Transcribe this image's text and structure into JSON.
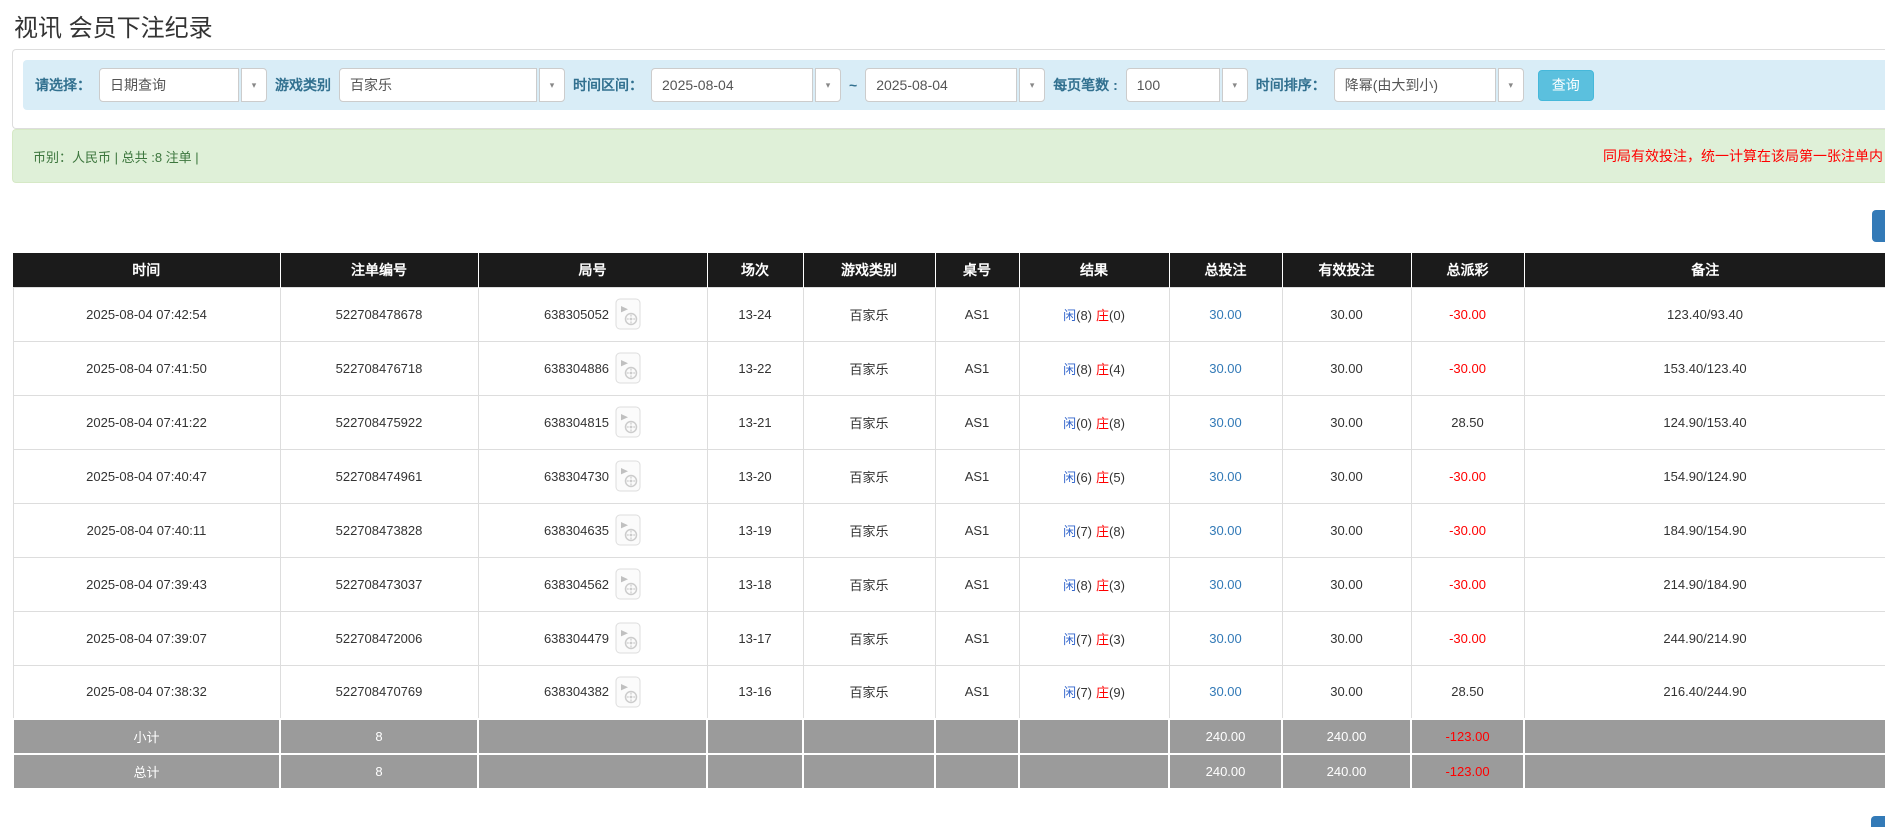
{
  "page": {
    "title": "视讯 会员下注纪录"
  },
  "colors": {
    "accent_blue": "#337ab7",
    "search_button_bg": "#5bc0de",
    "negative_red": "#ff0000",
    "player_blue": "#3366cc",
    "header_bg": "#1b1b1b",
    "summary_row_bg": "#9b9b9b",
    "filter_bar_bg": "#d9edf7",
    "info_bar_bg": "#dff0d8",
    "filter_label_color": "#31708f"
  },
  "icons": {
    "chevron_down": "▾",
    "video": "film-file-icon"
  },
  "filters": {
    "select_type_label": "请选择：",
    "select_type_value": "日期查询",
    "game_type_label": "游戏类别",
    "game_type_value": "百家乐",
    "time_range_label": "时间区间：",
    "date_from": "2025-08-04",
    "tilde": "~",
    "date_to": "2025-08-04",
    "page_size_label": "每页笔数 :",
    "page_size_value": "100",
    "sort_label": "时间排序：",
    "sort_value": "降幂(由大到小)",
    "search_button": "查询"
  },
  "summary_bar": {
    "left_text": "币别：人民币 | 总共 :8 注单 |",
    "right_text": "同局有效投注，统一计算在该局第一张注单内"
  },
  "table": {
    "headers": [
      "时间",
      "注单编号",
      "局号",
      "场次",
      "游戏类别",
      "桌号",
      "结果",
      "总投注",
      "有效投注",
      "总派彩",
      "备注"
    ],
    "rows": [
      {
        "time": "2025-08-04 07:42:54",
        "bet_id": "522708478678",
        "round_id": "638305052",
        "session": "13-24",
        "game": "百家乐",
        "table_no": "AS1",
        "player_label": "闲",
        "player_pts": "(8)",
        "banker_label": "庄",
        "banker_pts": "(0)",
        "total_bet": "30.00",
        "valid_bet": "30.00",
        "payout": "-30.00",
        "remark": "123.40/93.40"
      },
      {
        "time": "2025-08-04 07:41:50",
        "bet_id": "522708476718",
        "round_id": "638304886",
        "session": "13-22",
        "game": "百家乐",
        "table_no": "AS1",
        "player_label": "闲",
        "player_pts": "(8)",
        "banker_label": "庄",
        "banker_pts": "(4)",
        "total_bet": "30.00",
        "valid_bet": "30.00",
        "payout": "-30.00",
        "remark": "153.40/123.40"
      },
      {
        "time": "2025-08-04 07:41:22",
        "bet_id": "522708475922",
        "round_id": "638304815",
        "session": "13-21",
        "game": "百家乐",
        "table_no": "AS1",
        "player_label": "闲",
        "player_pts": "(0)",
        "banker_label": "庄",
        "banker_pts": "(8)",
        "total_bet": "30.00",
        "valid_bet": "30.00",
        "payout": "28.50",
        "remark": "124.90/153.40"
      },
      {
        "time": "2025-08-04 07:40:47",
        "bet_id": "522708474961",
        "round_id": "638304730",
        "session": "13-20",
        "game": "百家乐",
        "table_no": "AS1",
        "player_label": "闲",
        "player_pts": "(6)",
        "banker_label": "庄",
        "banker_pts": "(5)",
        "total_bet": "30.00",
        "valid_bet": "30.00",
        "payout": "-30.00",
        "remark": "154.90/124.90"
      },
      {
        "time": "2025-08-04 07:40:11",
        "bet_id": "522708473828",
        "round_id": "638304635",
        "session": "13-19",
        "game": "百家乐",
        "table_no": "AS1",
        "player_label": "闲",
        "player_pts": "(7)",
        "banker_label": "庄",
        "banker_pts": "(8)",
        "total_bet": "30.00",
        "valid_bet": "30.00",
        "payout": "-30.00",
        "remark": "184.90/154.90"
      },
      {
        "time": "2025-08-04 07:39:43",
        "bet_id": "522708473037",
        "round_id": "638304562",
        "session": "13-18",
        "game": "百家乐",
        "table_no": "AS1",
        "player_label": "闲",
        "player_pts": "(8)",
        "banker_label": "庄",
        "banker_pts": "(3)",
        "total_bet": "30.00",
        "valid_bet": "30.00",
        "payout": "-30.00",
        "remark": "214.90/184.90"
      },
      {
        "time": "2025-08-04 07:39:07",
        "bet_id": "522708472006",
        "round_id": "638304479",
        "session": "13-17",
        "game": "百家乐",
        "table_no": "AS1",
        "player_label": "闲",
        "player_pts": "(7)",
        "banker_label": "庄",
        "banker_pts": "(3)",
        "total_bet": "30.00",
        "valid_bet": "30.00",
        "payout": "-30.00",
        "remark": "244.90/214.90"
      },
      {
        "time": "2025-08-04 07:38:32",
        "bet_id": "522708470769",
        "round_id": "638304382",
        "session": "13-16",
        "game": "百家乐",
        "table_no": "AS1",
        "player_label": "闲",
        "player_pts": "(7)",
        "banker_label": "庄",
        "banker_pts": "(9)",
        "total_bet": "30.00",
        "valid_bet": "30.00",
        "payout": "28.50",
        "remark": "216.40/244.90"
      }
    ],
    "subtotal": {
      "label": "小计",
      "count": "8",
      "total_bet": "240.00",
      "valid_bet": "240.00",
      "payout": "-123.00"
    },
    "total": {
      "label": "总计",
      "count": "8",
      "total_bet": "240.00",
      "valid_bet": "240.00",
      "payout": "-123.00"
    }
  }
}
